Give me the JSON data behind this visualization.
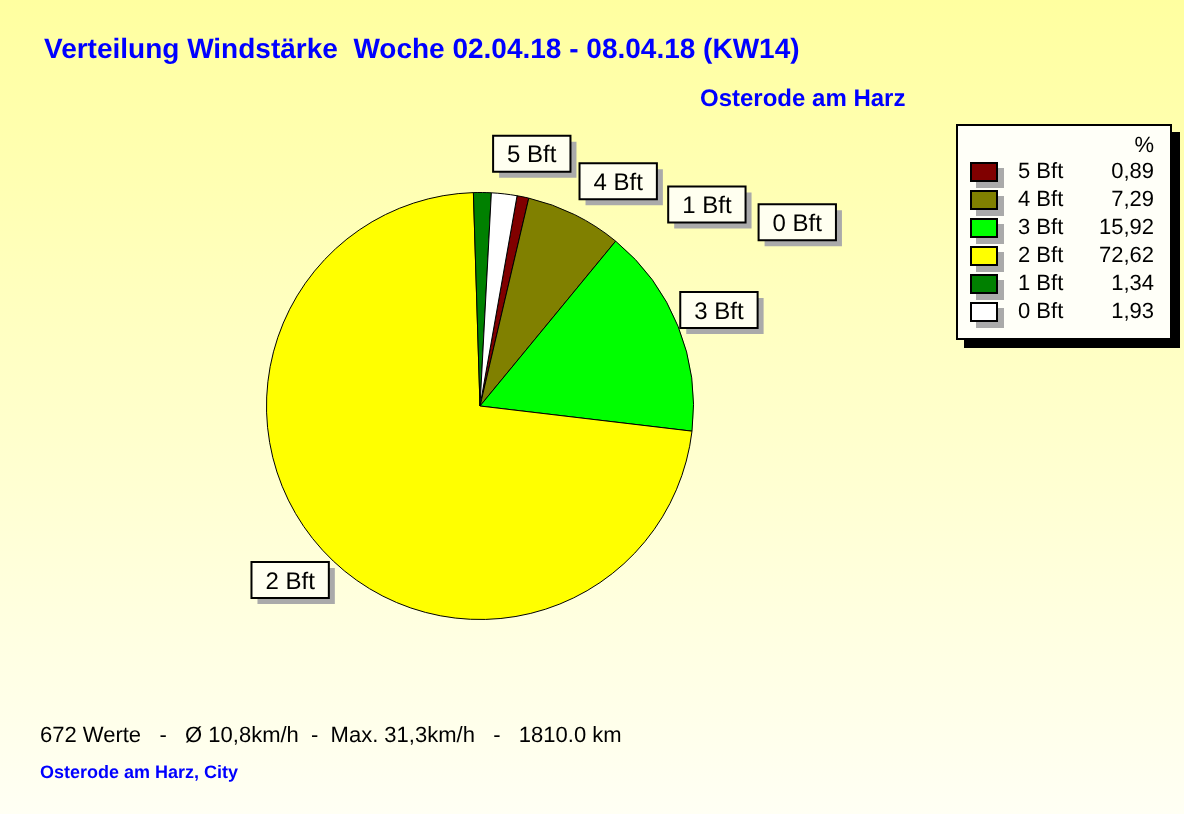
{
  "chart_data": {
    "type": "pie",
    "title": "Verteilung Windstärke  Woche 02.04.18 - 08.04.18 (KW14)",
    "subtitle": "Osterode am Harz",
    "legend_title": "%",
    "categories": [
      "5 Bft",
      "4 Bft",
      "3 Bft",
      "2 Bft",
      "1 Bft",
      "0 Bft"
    ],
    "values": [
      0.89,
      7.29,
      15.92,
      72.62,
      1.34,
      1.93
    ],
    "value_labels": [
      "0,89",
      "7,29",
      "15,92",
      "72,62",
      "1,34",
      "1,93"
    ],
    "colors": [
      "#800000",
      "#808000",
      "#00ff00",
      "#ffff00",
      "#008000",
      "#ffffff"
    ],
    "legend": "top right",
    "annotations": [
      "672 Werte   -   Ø 10,8km/h  -  Max. 31,3km/h   -   1810.0 km",
      "Osterode am Harz, City"
    ]
  }
}
